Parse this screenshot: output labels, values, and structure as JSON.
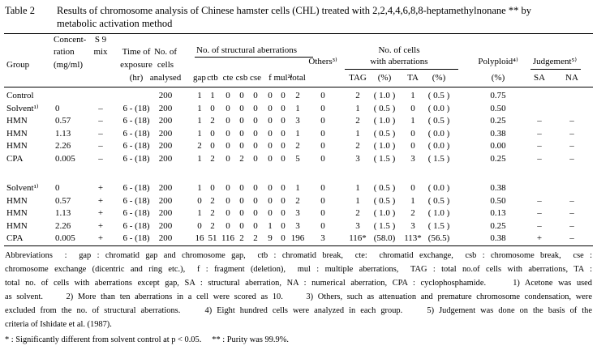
{
  "title": {
    "label": "Table 2",
    "lines": [
      "Results of chromosome analysis of Chinese hamster cells (CHL) treated with  2,2,4,4,6,8,8-heptamethylnonane ** by",
      "metabolic activation method"
    ]
  },
  "header": {
    "group": "Group",
    "concentration": [
      "Concent-",
      "ration",
      "(mg/ml)"
    ],
    "s9": [
      "S 9",
      "mix"
    ],
    "time": [
      "Time of",
      "exposure",
      "(hr)"
    ],
    "cells": [
      "No. of",
      "cells",
      "analysed"
    ],
    "structural": "No. of structural aberrations",
    "structural_sub": [
      "gap",
      "ctb",
      "cte",
      "csb",
      "cse",
      "f",
      "mul²⁾",
      "total"
    ],
    "others": "Others³⁾",
    "with_aberrations": [
      "No. of cells",
      "with aberrations"
    ],
    "with_sub": [
      "TAG",
      "(%)",
      "TA",
      "(%)"
    ],
    "polyploid": [
      "Polyploid⁴⁾",
      "(%)"
    ],
    "judgement": "Judgement⁵⁾",
    "judgement_sub": [
      "SA",
      "NA"
    ]
  },
  "table": {
    "blocks": [
      [
        [
          "Control",
          null,
          null,
          null,
          "200",
          "1",
          "1",
          "0",
          "0",
          "0",
          "0",
          "0",
          "2",
          "0",
          "2",
          "( 1.0 )",
          "1",
          "( 0.5 )",
          "0.75",
          null,
          null
        ],
        [
          "Solvent¹⁾",
          "0",
          "–",
          "6 - (18)",
          "200",
          "1",
          "0",
          "0",
          "0",
          "0",
          "0",
          "0",
          "1",
          "0",
          "1",
          "( 0.5 )",
          "0",
          "( 0.0 )",
          "0.50",
          null,
          null
        ],
        [
          "HMN",
          "0.57",
          "–",
          "6 - (18)",
          "200",
          "1",
          "2",
          "0",
          "0",
          "0",
          "0",
          "0",
          "3",
          "0",
          "2",
          "( 1.0 )",
          "1",
          "( 0.5 )",
          "0.25",
          "–",
          "–"
        ],
        [
          "HMN",
          "1.13",
          "–",
          "6 - (18)",
          "200",
          "1",
          "0",
          "0",
          "0",
          "0",
          "0",
          "0",
          "1",
          "0",
          "1",
          "( 0.5 )",
          "0",
          "( 0.0 )",
          "0.38",
          "–",
          "–"
        ],
        [
          "HMN",
          "2.26",
          "–",
          "6 - (18)",
          "200",
          "2",
          "0",
          "0",
          "0",
          "0",
          "0",
          "0",
          "2",
          "0",
          "2",
          "( 1.0 )",
          "0",
          "( 0.0 )",
          "0.00",
          "–",
          "–"
        ],
        [
          "CPA",
          "0.005",
          "–",
          "6 - (18)",
          "200",
          "1",
          "2",
          "0",
          "2",
          "0",
          "0",
          "0",
          "5",
          "0",
          "3",
          "( 1.5 )",
          "3",
          "( 1.5 )",
          "0.25",
          "–",
          "–"
        ]
      ],
      [
        [
          "Solvent¹⁾",
          "0",
          "+",
          "6 - (18)",
          "200",
          "1",
          "0",
          "0",
          "0",
          "0",
          "0",
          "0",
          "1",
          "0",
          "1",
          "( 0.5 )",
          "0",
          "( 0.0 )",
          "0.38",
          null,
          null
        ],
        [
          "HMN",
          "0.57",
          "+",
          "6 - (18)",
          "200",
          "0",
          "2",
          "0",
          "0",
          "0",
          "0",
          "0",
          "2",
          "0",
          "1",
          "( 0.5 )",
          "1",
          "( 0.5 )",
          "0.50",
          "–",
          "–"
        ],
        [
          "HMN",
          "1.13",
          "+",
          "6 - (18)",
          "200",
          "1",
          "2",
          "0",
          "0",
          "0",
          "0",
          "0",
          "3",
          "0",
          "2",
          "( 1.0 )",
          "2",
          "( 1.0 )",
          "0.13",
          "–",
          "–"
        ],
        [
          "HMN",
          "2.26",
          "+",
          "6 - (18)",
          "200",
          "0",
          "2",
          "0",
          "0",
          "0",
          "1",
          "0",
          "3",
          "0",
          "3",
          "( 1.5 )",
          "3",
          "( 1.5 )",
          "0.25",
          "–",
          "–"
        ],
        [
          "CPA",
          "0.005",
          "+",
          "6 - (18)",
          "200",
          "16",
          "51",
          "116",
          "2",
          "2",
          "9",
          "0",
          "196",
          "3",
          "116*",
          "(58.0)",
          "113*",
          "(56.5)",
          "0.38",
          "+",
          "–"
        ]
      ]
    ]
  },
  "footnotes": [
    "Abbreviations  :  gap : chromatid gap and chromosome gap,  ctb : chromatid break,  cte:  chromatid exchange,  csb : chromosome break,  cse :",
    "chromosome exchange (dicentric and ring etc.),  f : fragment (deletion),  mul : multiple aberrations,  TAG : total no.of cells with aberrations, TA :",
    "total no. of cells with aberrations except gap, SA : structural aberration, NA : numerical aberration, CPA : cyclophosphamide.     1) Acetone was used",
    "as solvent.     2) More than ten aberrations in a cell were scored as 10.     3) Others, such as attenuation and premature chromosome condensation, were",
    "excluded from the no. of structural aberrations.     4) Eight hundred cells were analyzed in each group.     5) Judgement was done on the basis of the",
    "criteria of Ishidate et al. (1987).",
    "* : Significantly different from solvent control at p < 0.05.     ** : Purity was 99.9%."
  ]
}
